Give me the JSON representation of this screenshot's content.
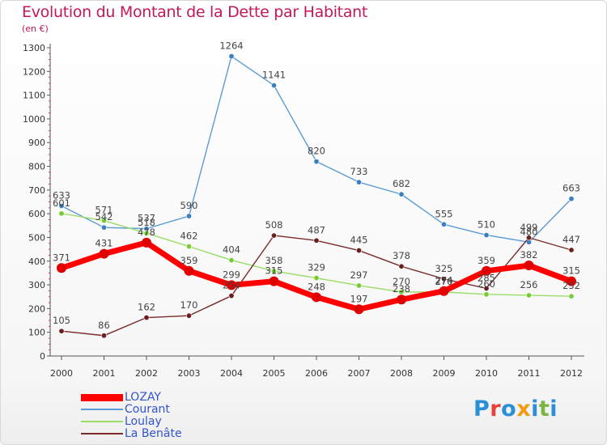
{
  "header": {
    "title": "Evolution du Montant de la Dette par Habitant",
    "unit": "(en €)"
  },
  "logo": {
    "text": "Proxiti",
    "letter_colors": [
      "#2a8fd6",
      "#e8403c",
      "#2a8fd6",
      "#f39c12",
      "#2a8fd6",
      "#7cb342",
      "#2a8fd6"
    ]
  },
  "chart_data": {
    "type": "line",
    "title": "Evolution du Montant de la Dette par Habitant",
    "subtitle": "(en €)",
    "xlabel": "",
    "ylabel": "",
    "x": [
      "2000",
      "2001",
      "2002",
      "2003",
      "2004",
      "2005",
      "2006",
      "2007",
      "2008",
      "2009",
      "2010",
      "2011",
      "2012"
    ],
    "ylim": [
      0,
      1300
    ],
    "yticks": [
      0,
      100,
      200,
      300,
      400,
      500,
      600,
      700,
      800,
      900,
      1000,
      1100,
      1200,
      1300
    ],
    "grid": false,
    "legend_position": "bottom-left",
    "series": [
      {
        "name": "LOZAY",
        "color": "#ff0000",
        "marker_color": "#e00000",
        "thick": true,
        "values": [
          371,
          431,
          478,
          359,
          299,
          315,
          248,
          197,
          238,
          274,
          359,
          382,
          315
        ]
      },
      {
        "name": "Courant",
        "color": "#5b9bd5",
        "marker_color": "#3a7fc0",
        "thick": false,
        "values": [
          633,
          542,
          537,
          590,
          1264,
          1141,
          820,
          733,
          682,
          555,
          510,
          480,
          663
        ]
      },
      {
        "name": "Loulay",
        "color": "#99dd66",
        "marker_color": "#77cc33",
        "thick": false,
        "values": [
          601,
          571,
          518,
          462,
          404,
          358,
          329,
          297,
          270,
          270,
          260,
          256,
          252
        ]
      },
      {
        "name": "La Benâte",
        "color": "#7a2a2a",
        "marker_color": "#6a1f1f",
        "thick": false,
        "values": [
          105,
          86,
          162,
          170,
          254,
          508,
          487,
          445,
          378,
          325,
          285,
          499,
          447
        ]
      }
    ]
  }
}
